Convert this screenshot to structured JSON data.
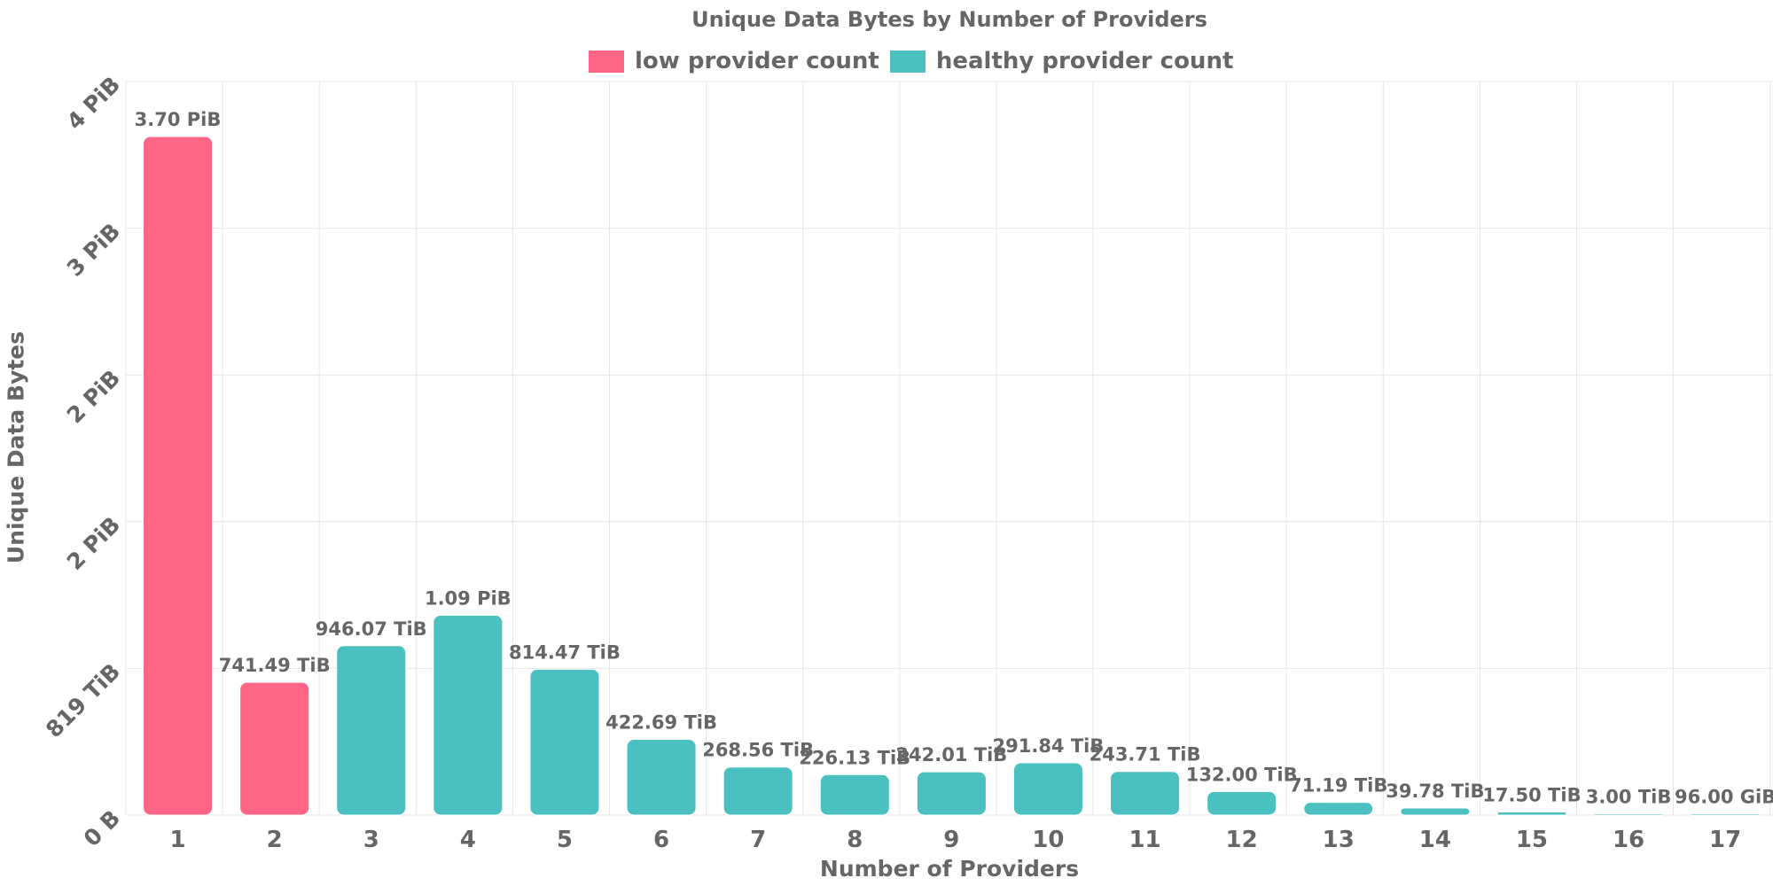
{
  "colors": {
    "low": "#ff6584",
    "healthy": "#4bc0c0",
    "grid": "#e6e6e6",
    "text": "#666666"
  },
  "chart_data": {
    "type": "bar",
    "title": "Unique Data Bytes by Number of Providers",
    "xlabel": "Number of Providers",
    "ylabel": "Unique Data Bytes",
    "categories": [
      "1",
      "2",
      "3",
      "4",
      "5",
      "6",
      "7",
      "8",
      "9",
      "10",
      "11",
      "12",
      "13",
      "14",
      "15",
      "16",
      "17"
    ],
    "values_tib": [
      3788.8,
      741.49,
      946.07,
      1116.16,
      814.47,
      422.69,
      268.56,
      226.13,
      242.01,
      291.84,
      243.71,
      132.0,
      71.19,
      39.78,
      17.5,
      3.0,
      0.09375
    ],
    "value_labels": [
      "3.70 PiB",
      "741.49 TiB",
      "946.07 TiB",
      "1.09 PiB",
      "814.47 TiB",
      "422.69 TiB",
      "268.56 TiB",
      "226.13 TiB",
      "242.01 TiB",
      "291.84 TiB",
      "243.71 TiB",
      "132.00 TiB",
      "71.19 TiB",
      "39.78 TiB",
      "17.50 TiB",
      "3.00 TiB",
      "96.00 GiB"
    ],
    "bar_groups": [
      "low",
      "low",
      "healthy",
      "healthy",
      "healthy",
      "healthy",
      "healthy",
      "healthy",
      "healthy",
      "healthy",
      "healthy",
      "healthy",
      "healthy",
      "healthy",
      "healthy",
      "healthy",
      "healthy"
    ],
    "ylim_tib": [
      0,
      4096
    ],
    "y_tick_values_tib": [
      0,
      819.2,
      1638.4,
      2457.6,
      3276.8,
      4096
    ],
    "y_tick_labels": [
      "0 B",
      "819 TiB",
      "2 PiB",
      "2 PiB",
      "3 PiB",
      "4 PiB"
    ],
    "legend": [
      {
        "label": "low provider count",
        "group": "low"
      },
      {
        "label": "healthy provider count",
        "group": "healthy"
      }
    ],
    "legend_position": "top-center",
    "grid": true
  }
}
